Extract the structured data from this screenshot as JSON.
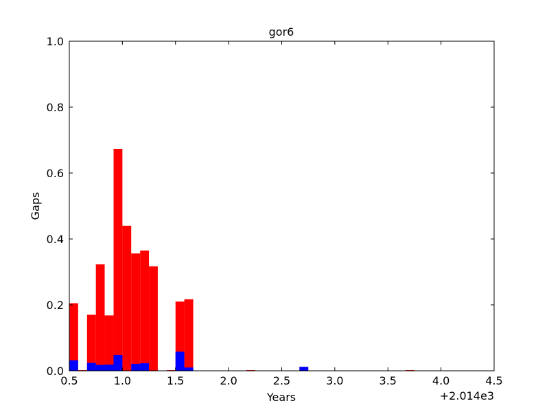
{
  "chart_data": {
    "type": "histogram",
    "title": "gor6",
    "x_label": "Years",
    "y_label": "Gaps",
    "x_offset_label": "+2.014e3",
    "bins": [
      0.5,
      0.583,
      0.667,
      0.75,
      0.833,
      0.917,
      1,
      1.083,
      1.167,
      1.25,
      1.333,
      1.417,
      1.5,
      1.583,
      1.667,
      1.75,
      1.833,
      1.917,
      2,
      2.083,
      2.167,
      2.25,
      2.333,
      2.417,
      2.5,
      2.583,
      2.667,
      2.75,
      2.833,
      2.917,
      3,
      3.083,
      3.167,
      3.25,
      3.333,
      3.417,
      3.5,
      3.583,
      3.667,
      3.75,
      3.833,
      3.917,
      4,
      4.083,
      4.167,
      4.25,
      4.333,
      4.417,
      4.5
    ],
    "series": [
      {
        "color": "#ff0000",
        "values": [
          0.205,
          0.002,
          0.17,
          0.323,
          0.168,
          0.673,
          0.44,
          0.356,
          0.365,
          0.317,
          0,
          0.002,
          0.21,
          0.217,
          0,
          0,
          0,
          0,
          0,
          0,
          0.002,
          0,
          0,
          0,
          0,
          0,
          0.012,
          0,
          0,
          0,
          0,
          0,
          0,
          0,
          0,
          0,
          0,
          0,
          0.002,
          0,
          0,
          0,
          0,
          0,
          0,
          0,
          0,
          0
        ]
      },
      {
        "color": "#0000ff",
        "values": [
          0.032,
          0,
          0.024,
          0.018,
          0.019,
          0.048,
          0,
          0.021,
          0.023,
          0,
          0,
          0,
          0.058,
          0.01,
          0,
          0,
          0,
          0,
          0,
          0,
          0,
          0,
          0,
          0,
          0,
          0,
          0.012,
          0,
          0,
          0,
          0,
          0,
          0,
          0,
          0,
          0,
          0,
          0,
          0,
          0,
          0,
          0,
          0,
          0,
          0,
          0,
          0,
          0
        ]
      }
    ],
    "xlim": [
      0.5,
      4.5
    ],
    "xticks": [
      0.5,
      {
        "value": 1,
        "label": "1.0"
      },
      1.5,
      {
        "value": 2,
        "label": "2.0"
      },
      2.5,
      {
        "value": 3,
        "label": "3.0"
      },
      3.5,
      {
        "value": 4,
        "label": "4.0"
      },
      4.5
    ],
    "ylim": [
      0,
      1
    ],
    "yticks": [
      {
        "value": 0,
        "label": "0.0"
      },
      0.2,
      0.4,
      0.6,
      0.8,
      {
        "value": 1,
        "label": "1.0"
      }
    ]
  }
}
